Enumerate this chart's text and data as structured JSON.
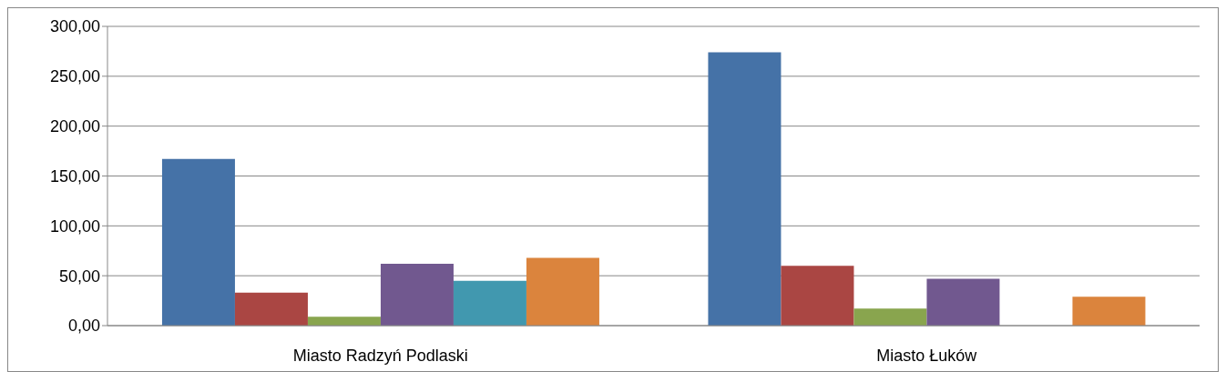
{
  "chart_data": {
    "type": "bar",
    "categories": [
      "Miasto Radzyń Podlaski",
      "Miasto Łuków"
    ],
    "series": [
      {
        "color": "#4572a7",
        "values": [
          167,
          274
        ]
      },
      {
        "color": "#aa4643",
        "values": [
          33,
          60
        ]
      },
      {
        "color": "#89a54e",
        "values": [
          9,
          17
        ]
      },
      {
        "color": "#71588f",
        "values": [
          62,
          47
        ]
      },
      {
        "color": "#4198af",
        "values": [
          45,
          null
        ]
      },
      {
        "color": "#db843d",
        "values": [
          68,
          29
        ]
      }
    ],
    "ylim": [
      0,
      300
    ],
    "yticks": [
      {
        "value": 0,
        "label": "0,00"
      },
      {
        "value": 50,
        "label": "50,00"
      },
      {
        "value": 100,
        "label": "100,00"
      },
      {
        "value": 150,
        "label": "150,00"
      },
      {
        "value": 200,
        "label": "200,00"
      },
      {
        "value": 250,
        "label": "250,00"
      },
      {
        "value": 300,
        "label": "300,00"
      }
    ],
    "grid": "y",
    "legend": false
  }
}
